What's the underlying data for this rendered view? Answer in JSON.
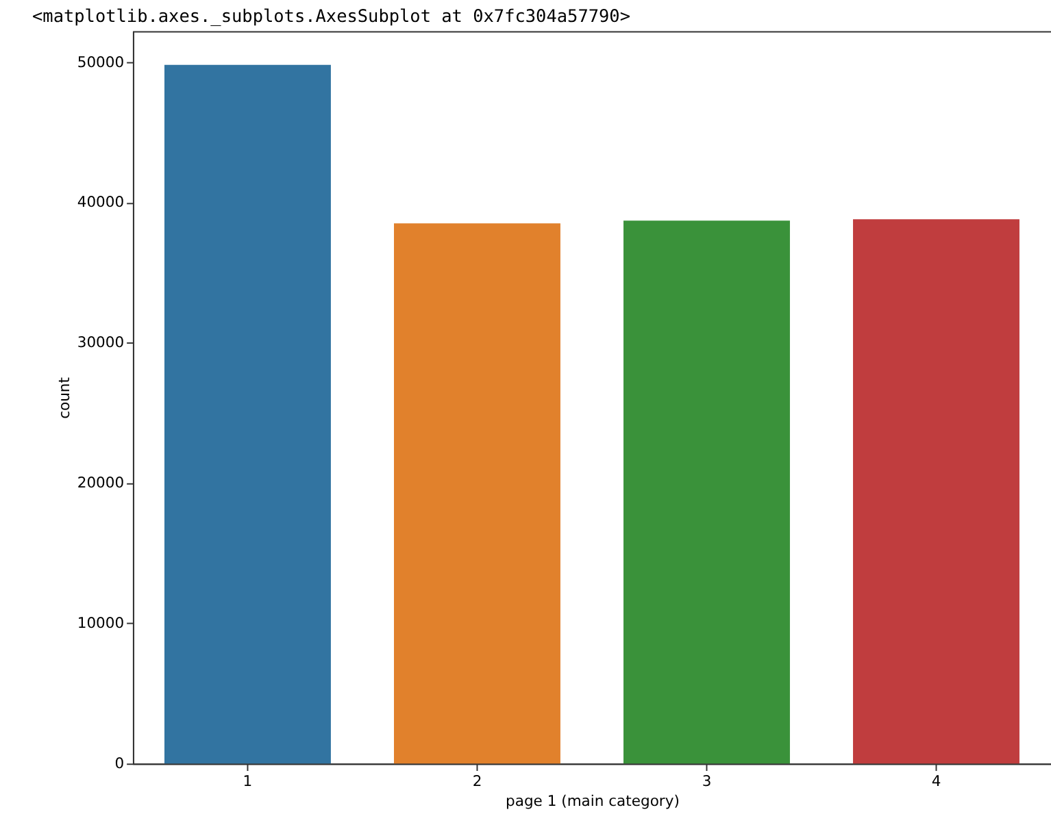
{
  "chart_data": {
    "type": "bar",
    "title": "<matplotlib.axes._subplots.AxesSubplot at 0x7fc304a57790>",
    "xlabel": "page 1 (main category)",
    "ylabel": "count",
    "categories": [
      "1",
      "2",
      "3",
      "4"
    ],
    "values": [
      49800,
      38500,
      38700,
      38800
    ],
    "colors": [
      "#3274a1",
      "#e1812c",
      "#3a923a",
      "#c03d3e"
    ],
    "ylim": [
      0,
      52200
    ],
    "yticks": [
      0,
      10000,
      20000,
      30000,
      40000,
      50000
    ],
    "grid": false,
    "legend": false
  }
}
